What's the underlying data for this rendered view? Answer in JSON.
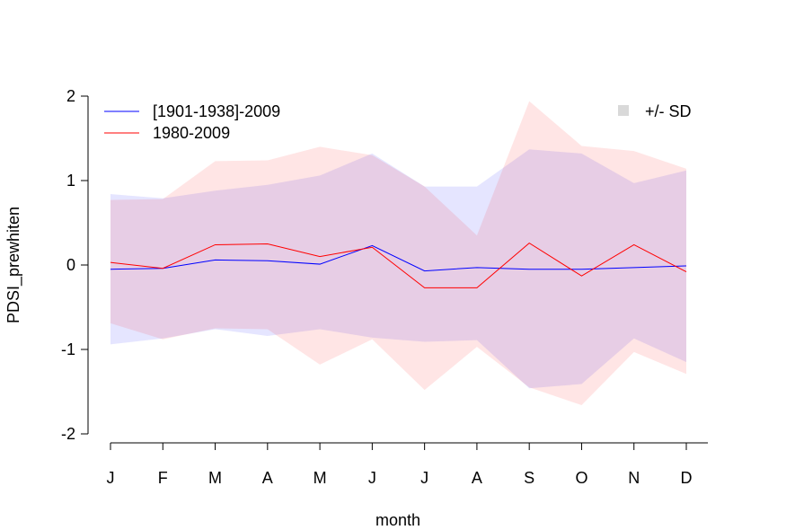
{
  "chart_data": {
    "type": "line",
    "xlabel": "month",
    "ylabel": "PDSI_prewhiten",
    "categories": [
      "J",
      "F",
      "M",
      "A",
      "M",
      "J",
      "J",
      "A",
      "S",
      "O",
      "N",
      "D"
    ],
    "ylim": [
      -2.1,
      2.1
    ],
    "yticks": [
      -2,
      -1,
      0,
      1,
      2
    ],
    "ytick_labels": [
      "-2",
      "-1",
      "0",
      "1",
      "2"
    ],
    "grid": false,
    "legend": {
      "position": "top-left",
      "sd_position": "top-right",
      "sd_label": "+/- SD",
      "sd_swatch_color": "#d9d9d9"
    },
    "series": [
      {
        "name": "[1901-1938]-2009",
        "color": "#0000ff",
        "band_color": "#0000ff",
        "band_opacity": 0.1,
        "values": [
          -0.05,
          -0.04,
          0.06,
          0.05,
          0.01,
          0.23,
          -0.07,
          -0.03,
          -0.05,
          -0.05,
          -0.03,
          -0.01
        ],
        "upper": [
          0.84,
          0.79,
          0.88,
          0.95,
          1.06,
          1.32,
          0.93,
          0.93,
          1.37,
          1.32,
          0.97,
          1.12
        ],
        "lower": [
          -0.94,
          -0.87,
          -0.76,
          -0.84,
          -0.76,
          -0.86,
          -0.91,
          -0.89,
          -1.46,
          -1.41,
          -0.87,
          -1.15
        ]
      },
      {
        "name": "1980-2009",
        "color": "#ff0000",
        "band_color": "#ff0000",
        "band_opacity": 0.1,
        "values": [
          0.03,
          -0.04,
          0.24,
          0.25,
          0.1,
          0.21,
          -0.27,
          -0.27,
          0.26,
          -0.13,
          0.24,
          -0.08
        ],
        "upper": [
          0.77,
          0.78,
          1.23,
          1.24,
          1.4,
          1.3,
          0.93,
          0.35,
          1.94,
          1.41,
          1.35,
          1.14
        ],
        "lower": [
          -0.69,
          -0.88,
          -0.75,
          -0.76,
          -1.18,
          -0.88,
          -1.48,
          -0.97,
          -1.45,
          -1.66,
          -1.03,
          -1.29
        ]
      }
    ]
  }
}
